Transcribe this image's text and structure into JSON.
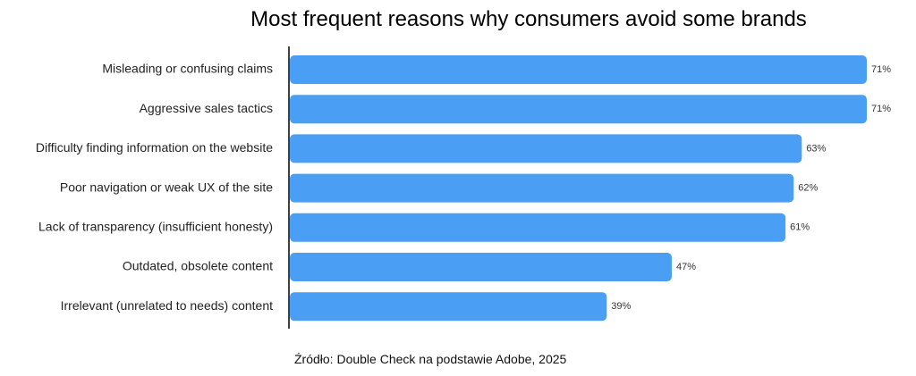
{
  "chart_data": {
    "type": "bar",
    "orientation": "horizontal",
    "title": "Most frequent reasons why consumers avoid some brands",
    "categories": [
      "Misleading or confusing claims",
      "Aggressive sales tactics",
      "Difficulty finding information on the website",
      "Poor navigation or weak UX of the site",
      "Lack of transparency (insufficient honesty)",
      "Outdated, obsolete content",
      "Irrelevant (unrelated to needs) content"
    ],
    "values": [
      71,
      71,
      63,
      62,
      61,
      47,
      39
    ],
    "value_labels": [
      "71%",
      "71%",
      "63%",
      "62%",
      "61%",
      "47%",
      "39%"
    ],
    "value_unit": "%",
    "xlim": [
      0,
      71
    ],
    "grid": false,
    "legend": "none",
    "bar_color": "#4a9ff5",
    "source": "Źródło: Double Check na podstawie Adobe, 2025"
  }
}
